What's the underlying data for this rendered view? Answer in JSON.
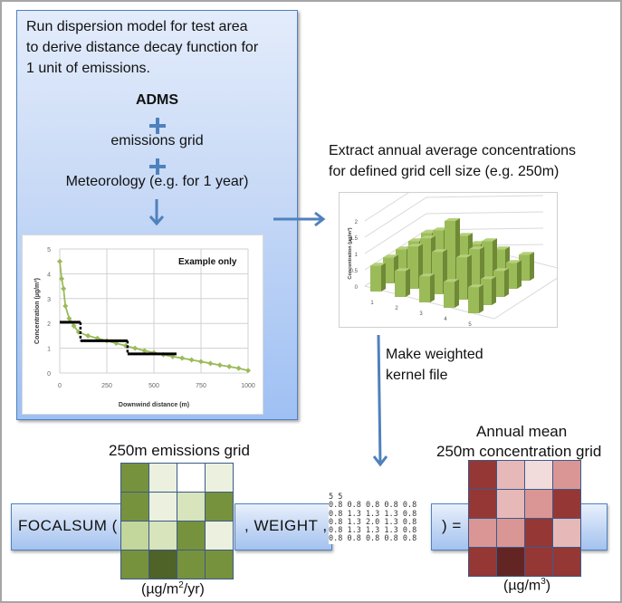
{
  "step1": {
    "description_lines": [
      "Run dispersion model for test area",
      "to derive distance decay function for",
      "1 unit of emissions."
    ],
    "inputs": [
      "ADMS",
      "emissions grid",
      "Meteorology (e.g. for 1 year)"
    ],
    "operator_icon": "plus-icon",
    "arrow_icon": "arrow-down-icon"
  },
  "step2": {
    "description_lines": [
      "Extract annual average concentrations",
      "for defined grid cell size (e.g. 250m)"
    ],
    "arrow_icon": "arrow-right-icon"
  },
  "step3": {
    "description_lines": [
      "Make weighted",
      "kernel file"
    ],
    "arrow_icon": "arrow-down-icon"
  },
  "formula": {
    "function_label": "FOCALSUM (",
    "weight_label": ", WEIGHT ,",
    "equals_label": ") ="
  },
  "emissions_grid": {
    "title": "250m emissions grid",
    "unit_prefix": "(µg/m",
    "unit_sup": "2",
    "unit_suffix": "/yr)",
    "cells": [
      [
        "#77923c",
        "#ebf1de",
        "#ffffff",
        "#ebf1de"
      ],
      [
        "#77923c",
        "#ebf1de",
        "#d7e4bc",
        "#77923c"
      ],
      [
        "#c3d69b",
        "#d7e4bc",
        "#77923c",
        "#ebf1de"
      ],
      [
        "#77923c",
        "#4f6228",
        "#77923c",
        "#77923c"
      ]
    ]
  },
  "kernel": {
    "header": "5 5",
    "rows": [
      "0.8 0.8 0.8 0.8 0.8",
      "0.8 1.3 1.3 1.3 0.8",
      "0.8 1.3 2.0 1.3 0.8",
      "0.8 1.3 1.3 1.3 0.8",
      "0.8 0.8 0.8 0.8 0.8"
    ]
  },
  "concentration_grid": {
    "title_line1": "Annual mean",
    "title_line2": "250m concentration grid",
    "unit_prefix": "(µg/m",
    "unit_sup": "3",
    "unit_suffix": ")",
    "cells": [
      [
        "#953735",
        "#e6b9b8",
        "#f2dcdb",
        "#d99694"
      ],
      [
        "#953735",
        "#e6b9b8",
        "#d99694",
        "#953735"
      ],
      [
        "#d99694",
        "#d99694",
        "#953735",
        "#e6b9b8"
      ],
      [
        "#953735",
        "#632523",
        "#953735",
        "#953735"
      ]
    ]
  },
  "chart_data": [
    {
      "type": "line",
      "title": "",
      "annotation": "Example only",
      "xlabel": "Downwind distance (m)",
      "ylabel": "Concentration (µg/m³)",
      "xlim": [
        0,
        1000
      ],
      "ylim": [
        0,
        5
      ],
      "xticks": [
        "0",
        "250",
        "500",
        "750",
        "1000"
      ],
      "yticks": [
        "0",
        "1",
        "2",
        "3",
        "4",
        "5"
      ],
      "grid": true,
      "series": [
        {
          "name": "decay",
          "color": "#9bbb59",
          "x": [
            0,
            10,
            20,
            30,
            50,
            75,
            100,
            150,
            200,
            250,
            300,
            350,
            400,
            450,
            500,
            550,
            600,
            650,
            700,
            750,
            800,
            850,
            900,
            950,
            1000
          ],
          "y": [
            4.5,
            3.8,
            3.4,
            2.7,
            2.2,
            1.9,
            1.65,
            1.5,
            1.4,
            1.3,
            1.2,
            1.1,
            1.0,
            0.9,
            0.82,
            0.74,
            0.66,
            0.6,
            0.53,
            0.46,
            0.39,
            0.32,
            0.26,
            0.19,
            0.1
          ]
        }
      ],
      "steps": [
        {
          "x0": 0,
          "x1": 110,
          "y": 2.05
        },
        {
          "x0": 110,
          "x1": 360,
          "y": 1.3
        },
        {
          "x0": 360,
          "x1": 620,
          "y": 0.77
        }
      ]
    },
    {
      "type": "bar3d",
      "title": "",
      "ylabel": "Concentration (µg/m³)",
      "zlim": [
        0,
        2
      ],
      "zticks": [
        "0",
        "0.5",
        "1",
        "1.5",
        "2"
      ],
      "xticks": [
        "1",
        "2",
        "3",
        "4",
        "5"
      ],
      "color": "#9bbb59",
      "values": [
        [
          0.8,
          0.8,
          0.8,
          0.8,
          0.8
        ],
        [
          0.8,
          1.3,
          1.3,
          1.3,
          0.8
        ],
        [
          0.8,
          1.3,
          2.0,
          1.3,
          0.8
        ],
        [
          0.8,
          1.3,
          1.3,
          1.3,
          0.8
        ],
        [
          0.8,
          0.8,
          0.8,
          0.8,
          0.8
        ]
      ]
    }
  ]
}
